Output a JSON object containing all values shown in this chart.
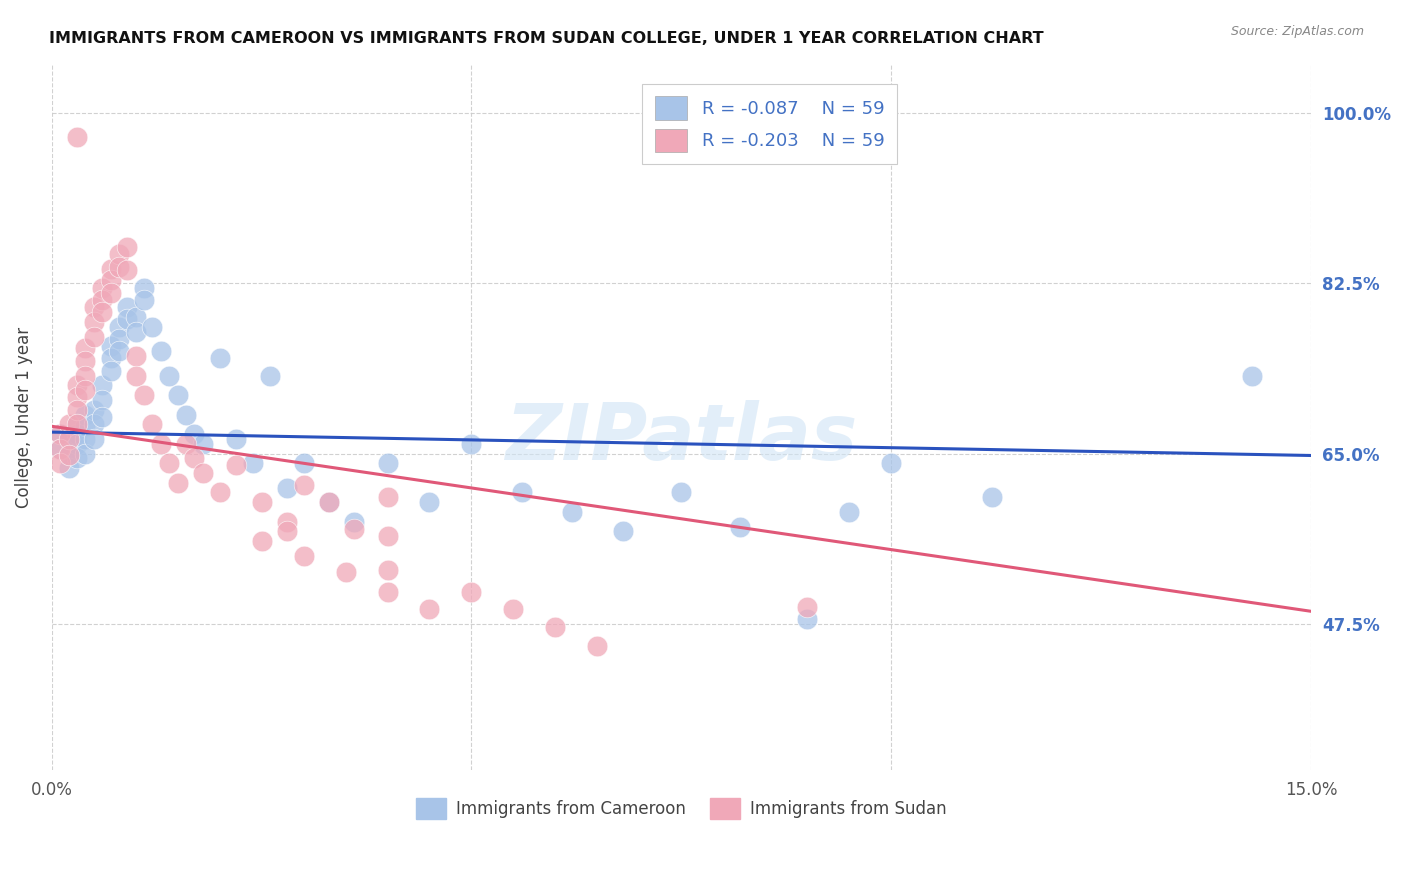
{
  "title": "IMMIGRANTS FROM CAMEROON VS IMMIGRANTS FROM SUDAN COLLEGE, UNDER 1 YEAR CORRELATION CHART",
  "source": "Source: ZipAtlas.com",
  "ylabel": "College, Under 1 year",
  "xlim": [
    0.0,
    0.15
  ],
  "ylim": [
    0.325,
    1.05
  ],
  "xticks": [
    0.0,
    0.05,
    0.1,
    0.15
  ],
  "xticklabels": [
    "0.0%",
    "",
    "",
    "15.0%"
  ],
  "yticks": [
    0.475,
    0.65,
    0.825,
    1.0
  ],
  "yticklabels": [
    "47.5%",
    "65.0%",
    "82.5%",
    "100.0%"
  ],
  "right_ytick_color": "#4472c4",
  "grid_color": "#cccccc",
  "background_color": "#ffffff",
  "cameroon_color": "#a8c4e8",
  "sudan_color": "#f0a8b8",
  "cameroon_line_color": "#2a52be",
  "sudan_line_color": "#e05878",
  "legend_R_cameroon": "R = -0.087",
  "legend_N_cameroon": "N = 59",
  "legend_R_sudan": "R = -0.203",
  "legend_N_sudan": "N = 59",
  "legend_label_cameroon": "Immigrants from Cameroon",
  "legend_label_sudan": "Immigrants from Sudan",
  "watermark": "ZIPatlas",
  "cameroon_line_x0": 0.0,
  "cameroon_line_x1": 0.15,
  "cameroon_line_y0": 0.672,
  "cameroon_line_y1": 0.648,
  "sudan_line_x0": 0.0,
  "sudan_line_x1": 0.15,
  "sudan_line_y0": 0.678,
  "sudan_line_y1": 0.488,
  "cameroon_x": [
    0.001,
    0.001,
    0.002,
    0.002,
    0.002,
    0.003,
    0.003,
    0.003,
    0.003,
    0.004,
    0.004,
    0.004,
    0.004,
    0.005,
    0.005,
    0.005,
    0.006,
    0.006,
    0.006,
    0.007,
    0.007,
    0.007,
    0.008,
    0.008,
    0.008,
    0.009,
    0.009,
    0.01,
    0.01,
    0.011,
    0.011,
    0.012,
    0.013,
    0.014,
    0.015,
    0.016,
    0.017,
    0.018,
    0.02,
    0.022,
    0.024,
    0.026,
    0.028,
    0.03,
    0.033,
    0.036,
    0.04,
    0.045,
    0.05,
    0.056,
    0.062,
    0.068,
    0.075,
    0.082,
    0.09,
    0.095,
    0.1,
    0.112,
    0.143
  ],
  "cameroon_y": [
    0.67,
    0.655,
    0.668,
    0.65,
    0.635,
    0.68,
    0.67,
    0.66,
    0.645,
    0.69,
    0.678,
    0.665,
    0.65,
    0.695,
    0.68,
    0.665,
    0.72,
    0.705,
    0.688,
    0.76,
    0.748,
    0.735,
    0.78,
    0.768,
    0.755,
    0.8,
    0.788,
    0.79,
    0.775,
    0.82,
    0.808,
    0.78,
    0.755,
    0.73,
    0.71,
    0.69,
    0.67,
    0.66,
    0.748,
    0.665,
    0.64,
    0.73,
    0.615,
    0.64,
    0.6,
    0.58,
    0.64,
    0.6,
    0.66,
    0.61,
    0.59,
    0.57,
    0.61,
    0.575,
    0.48,
    0.59,
    0.64,
    0.605,
    0.73
  ],
  "sudan_x": [
    0.001,
    0.001,
    0.001,
    0.002,
    0.002,
    0.002,
    0.003,
    0.003,
    0.003,
    0.003,
    0.004,
    0.004,
    0.004,
    0.004,
    0.005,
    0.005,
    0.005,
    0.006,
    0.006,
    0.006,
    0.007,
    0.007,
    0.007,
    0.008,
    0.008,
    0.009,
    0.009,
    0.01,
    0.01,
    0.011,
    0.012,
    0.013,
    0.014,
    0.015,
    0.016,
    0.017,
    0.018,
    0.02,
    0.022,
    0.025,
    0.028,
    0.03,
    0.033,
    0.036,
    0.04,
    0.04,
    0.04,
    0.025,
    0.03,
    0.035,
    0.04,
    0.045,
    0.05,
    0.055,
    0.06,
    0.065,
    0.09,
    0.028,
    0.003
  ],
  "sudan_y": [
    0.67,
    0.655,
    0.64,
    0.68,
    0.665,
    0.648,
    0.72,
    0.708,
    0.695,
    0.68,
    0.758,
    0.745,
    0.73,
    0.715,
    0.8,
    0.785,
    0.77,
    0.82,
    0.808,
    0.795,
    0.84,
    0.828,
    0.815,
    0.855,
    0.842,
    0.862,
    0.838,
    0.75,
    0.73,
    0.71,
    0.68,
    0.66,
    0.64,
    0.62,
    0.66,
    0.645,
    0.63,
    0.61,
    0.638,
    0.6,
    0.58,
    0.618,
    0.6,
    0.572,
    0.605,
    0.565,
    0.53,
    0.56,
    0.545,
    0.528,
    0.508,
    0.49,
    0.508,
    0.49,
    0.472,
    0.452,
    0.492,
    0.57,
    0.975
  ]
}
